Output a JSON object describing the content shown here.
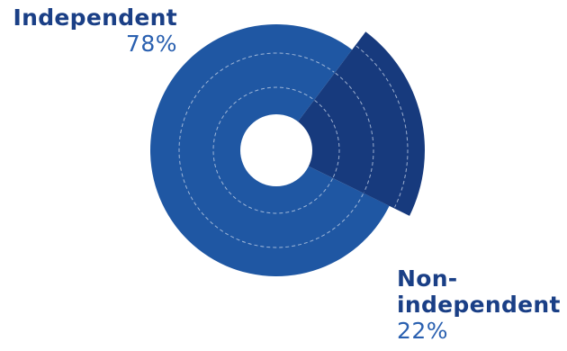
{
  "colors": {
    "independent": "#1f57a3",
    "nonindependent": "#173a7d",
    "label_name": "#1a3f86",
    "label_value": "#2a60b0",
    "guide_ring": "#c9d6ea"
  },
  "chart_data": {
    "type": "pie",
    "title": "",
    "style": "polar-area",
    "slices": [
      {
        "label": "Independent",
        "value": 78,
        "value_label": "78%"
      },
      {
        "label": "Non-\nindependent",
        "value": 22,
        "value_label": "22%"
      }
    ],
    "guide_rings": 3
  }
}
